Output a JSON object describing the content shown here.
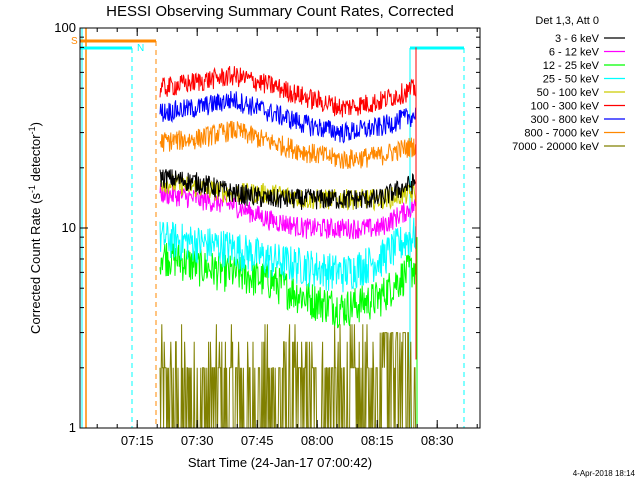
{
  "chart_data": {
    "type": "line",
    "title": "HESSI Observing Summary Count Rates, Corrected",
    "xlabel": "Start Time (24-Jan-17 07:00:42)",
    "ylabel_main": "Corrected Count Rate (s",
    "ylabel_sup1": "-1",
    "ylabel_mid": " detector",
    "ylabel_sup2": "-1",
    "ylabel_end": ")",
    "yscale": "log",
    "ylim": [
      1,
      100
    ],
    "xlim_minutes": [
      0,
      100
    ],
    "x_ticks": [
      {
        "label": "07:15",
        "value": 14.3
      },
      {
        "label": "07:30",
        "value": 29.3
      },
      {
        "label": "07:45",
        "value": 44.3
      },
      {
        "label": "08:00",
        "value": 59.3
      },
      {
        "label": "08:15",
        "value": 74.3
      },
      {
        "label": "08:30",
        "value": 89.3
      }
    ],
    "y_ticks": [
      {
        "label": "1",
        "value": 1
      },
      {
        "label": "10",
        "value": 10
      },
      {
        "label": "100",
        "value": 100
      }
    ],
    "legend_title": "Det 1,3, Att 0",
    "series": [
      {
        "name": "3 - 6 keV",
        "color": "#000000",
        "segment_values": [
          18,
          17,
          15,
          14,
          14,
          14,
          14,
          17
        ]
      },
      {
        "name": "6 - 12 keV",
        "color": "#ff00ff",
        "segment_values": [
          15,
          14,
          13,
          11,
          10,
          10,
          10,
          13
        ]
      },
      {
        "name": "12 - 25 keV",
        "color": "#00ff00",
        "segment_values": [
          7.5,
          6.5,
          6,
          5.5,
          4.5,
          4,
          4.5,
          6.5
        ]
      },
      {
        "name": "25 - 50 keV",
        "color": "#00ffff",
        "segment_values": [
          9,
          8.5,
          8,
          7,
          6.5,
          6,
          7,
          9.5
        ]
      },
      {
        "name": "50 - 100 keV",
        "color": "#cccc00",
        "segment_values": [
          17,
          16,
          15,
          15,
          14,
          14,
          14,
          15
        ]
      },
      {
        "name": "100 - 300 keV",
        "color": "#ff0000",
        "segment_values": [
          50,
          54,
          58,
          52,
          45,
          40,
          43,
          50
        ]
      },
      {
        "name": "300 - 800 keV",
        "color": "#0000ff",
        "segment_values": [
          38,
          40,
          44,
          38,
          33,
          30,
          32,
          37
        ]
      },
      {
        "name": "800 - 7000 keV",
        "color": "#ff8800",
        "segment_values": [
          27,
          28,
          31,
          27,
          24,
          22,
          23,
          26
        ]
      },
      {
        "name": "7000 - 20000 keV",
        "color": "#808000",
        "segment_values": [
          2,
          2,
          2,
          2,
          2,
          2,
          2,
          2.5
        ]
      }
    ],
    "data_span_minutes": [
      20,
      84
    ],
    "annotations": [
      {
        "label": "S",
        "color": "#ff8800"
      },
      {
        "label": "N",
        "color": "#00ffff"
      }
    ],
    "footer_date": "4-Apr-2018 18:14"
  }
}
